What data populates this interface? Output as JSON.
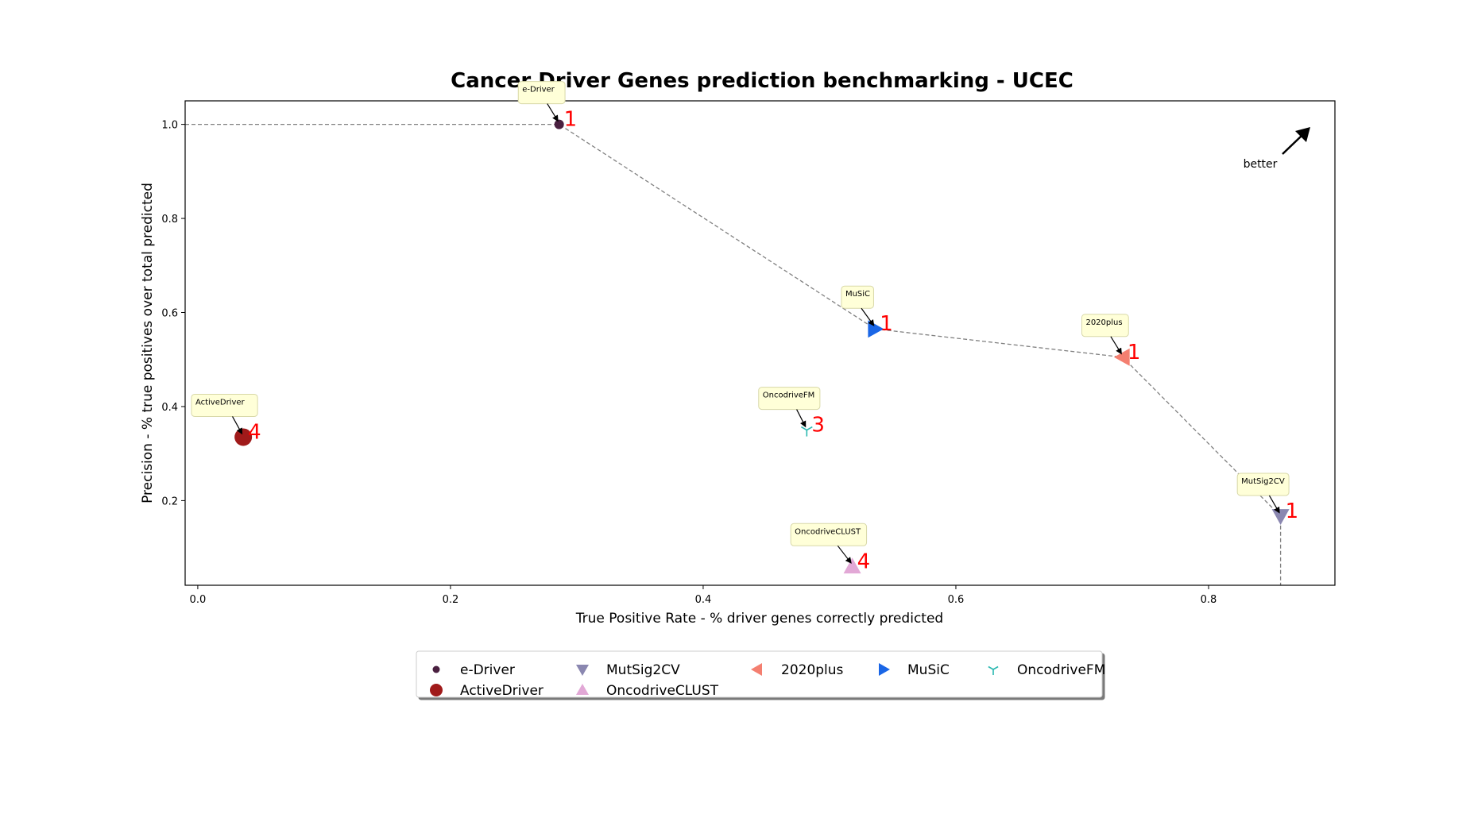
{
  "chart_data": {
    "type": "scatter",
    "title": "Cancer Driver Genes prediction benchmarking - UCEC",
    "xlabel": "True Positive Rate - % driver genes correctly predicted",
    "ylabel": "Precision - % true positives over total predicted",
    "xlim": [
      -0.01,
      0.9
    ],
    "ylim": [
      0.02,
      1.05
    ],
    "xticks": [
      "0.0",
      "0.2",
      "0.4",
      "0.6",
      "0.8"
    ],
    "yticks": [
      "0.2",
      "0.4",
      "0.6",
      "0.8",
      "1.0"
    ],
    "grid": false,
    "legend_position": "bottom-center",
    "better_label": "better",
    "series": [
      {
        "name": "e-Driver",
        "x": 0.286,
        "y": 1.0,
        "rank": "1",
        "marker": "circle-small",
        "color": "#4a2040"
      },
      {
        "name": "ActiveDriver",
        "x": 0.036,
        "y": 0.335,
        "rank": "4",
        "marker": "circle-large",
        "color": "#a01a1a"
      },
      {
        "name": "MutSig2CV",
        "x": 0.857,
        "y": 0.167,
        "rank": "1",
        "marker": "triangle-down",
        "color": "#8a87b0"
      },
      {
        "name": "OncodriveCLUST",
        "x": 0.518,
        "y": 0.06,
        "rank": "4",
        "marker": "triangle-up",
        "color": "#e2a8d6"
      },
      {
        "name": "2020plus",
        "x": 0.732,
        "y": 0.505,
        "rank": "1",
        "marker": "triangle-left",
        "color": "#f47f70"
      },
      {
        "name": "MuSiC",
        "x": 0.536,
        "y": 0.565,
        "rank": "1",
        "marker": "triangle-right",
        "color": "#1a66e6"
      },
      {
        "name": "OncodriveFM",
        "x": 0.482,
        "y": 0.35,
        "rank": "3",
        "marker": "tri-down",
        "color": "#2ab8b0"
      }
    ],
    "pareto_frontier": [
      [
        -0.01,
        1.0
      ],
      [
        0.286,
        1.0
      ],
      [
        0.536,
        0.565
      ],
      [
        0.732,
        0.505
      ],
      [
        0.857,
        0.167
      ],
      [
        0.857,
        0.02
      ]
    ],
    "legend_order": [
      "e-Driver",
      "MutSig2CV",
      "2020plus",
      "MuSiC",
      "OncodriveFM",
      "ActiveDriver",
      "OncodriveCLUST"
    ]
  },
  "colors": {
    "rank_label": "#ff0000",
    "frontier": "#808080",
    "annotation_box": "#ffffd8",
    "annotation_border": "#d8d8a8"
  }
}
